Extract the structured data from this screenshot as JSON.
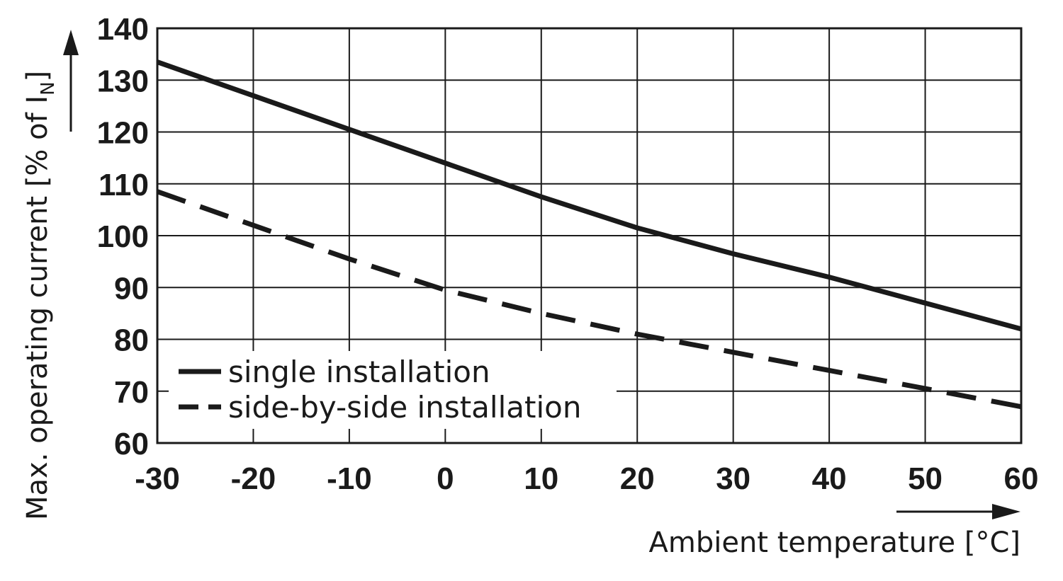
{
  "chart_data": {
    "type": "line",
    "title": "",
    "xlabel": "Ambient temperature [°C]",
    "ylabel_prefix": "Max. operating current [% of I",
    "ylabel_subscript": "N",
    "ylabel_suffix": "]",
    "xlim": [
      -30,
      60
    ],
    "ylim": [
      60,
      140
    ],
    "xticks": [
      -30,
      -20,
      -10,
      0,
      10,
      20,
      30,
      40,
      50,
      60
    ],
    "yticks": [
      60,
      70,
      80,
      90,
      100,
      110,
      120,
      130,
      140
    ],
    "grid": true,
    "legend_position": "lower-left",
    "series": [
      {
        "name": "single installation",
        "style": "solid",
        "x": [
          -30,
          -20,
          -10,
          0,
          10,
          20,
          30,
          40,
          50,
          60
        ],
        "y": [
          133.5,
          127,
          120.5,
          114,
          107.5,
          101.5,
          96.5,
          92,
          87,
          82
        ]
      },
      {
        "name": "side-by-side installation",
        "style": "dashed",
        "x": [
          -30,
          -20,
          -10,
          0,
          10,
          20,
          30,
          40,
          50,
          60
        ],
        "y": [
          108.5,
          102,
          95.5,
          89.5,
          85,
          81,
          77.5,
          74,
          70.5,
          67
        ]
      }
    ],
    "line_color": "#1a1a1a"
  }
}
